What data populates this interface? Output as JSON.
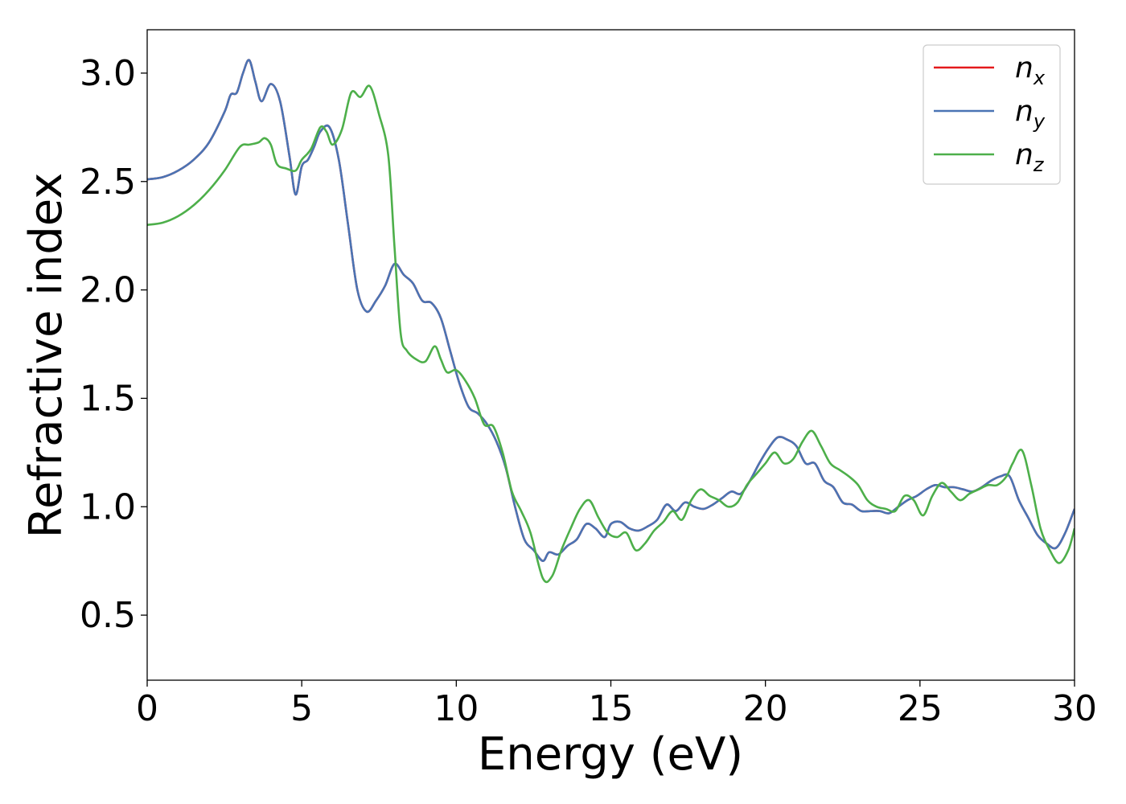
{
  "chart_data": {
    "type": "line",
    "title": "",
    "xlabel": "Energy (eV)",
    "ylabel": "Refractive index",
    "xlim": [
      0,
      30
    ],
    "ylim": [
      0.2,
      3.2
    ],
    "xticks": [
      0,
      5,
      10,
      15,
      20,
      25,
      30
    ],
    "xtick_labels": [
      "0",
      "5",
      "10",
      "15",
      "20",
      "25",
      "30"
    ],
    "yticks": [
      0.5,
      1.0,
      1.5,
      2.0,
      2.5,
      3.0
    ],
    "ytick_labels": [
      "0.5",
      "1.0",
      "1.5",
      "2.0",
      "2.5",
      "3.0"
    ],
    "grid": false,
    "legend_position": "top-right",
    "series": [
      {
        "name": "n_x",
        "base": "n",
        "sub": "x",
        "color": "#e41a1c",
        "x": [
          0,
          0.5,
          1,
          1.5,
          2,
          2.5,
          2.7,
          2.9,
          3.1,
          3.3,
          3.5,
          3.7,
          4.0,
          4.3,
          4.6,
          4.8,
          5.0,
          5.2,
          5.4,
          5.6,
          5.9,
          6.2,
          6.5,
          6.8,
          7.1,
          7.4,
          7.7,
          8.0,
          8.3,
          8.6,
          8.9,
          9.2,
          9.5,
          9.8,
          10.1,
          10.4,
          10.7,
          11.0,
          11.3,
          11.6,
          11.9,
          12.2,
          12.5,
          12.8,
          13.0,
          13.3,
          13.6,
          13.9,
          14.2,
          14.5,
          14.8,
          15.0,
          15.3,
          15.6,
          15.9,
          16.2,
          16.5,
          16.8,
          17.1,
          17.4,
          17.7,
          18.0,
          18.3,
          18.6,
          18.9,
          19.2,
          19.5,
          19.8,
          20.1,
          20.4,
          20.7,
          21.0,
          21.3,
          21.6,
          21.9,
          22.2,
          22.5,
          22.8,
          23.1,
          23.4,
          23.7,
          24.0,
          24.3,
          24.6,
          24.9,
          25.2,
          25.5,
          25.8,
          26.1,
          26.4,
          26.7,
          27.0,
          27.3,
          27.6,
          27.9,
          28.2,
          28.5,
          28.8,
          29.1,
          29.4,
          29.7,
          30.0
        ],
        "values": [
          2.51,
          2.52,
          2.55,
          2.6,
          2.68,
          2.82,
          2.9,
          2.91,
          3.0,
          3.06,
          2.96,
          2.87,
          2.95,
          2.87,
          2.62,
          2.44,
          2.57,
          2.6,
          2.66,
          2.73,
          2.75,
          2.6,
          2.3,
          2.0,
          1.9,
          1.95,
          2.02,
          2.12,
          2.07,
          2.03,
          1.95,
          1.94,
          1.87,
          1.72,
          1.57,
          1.46,
          1.43,
          1.38,
          1.3,
          1.18,
          1.0,
          0.85,
          0.8,
          0.75,
          0.79,
          0.78,
          0.82,
          0.85,
          0.92,
          0.9,
          0.86,
          0.92,
          0.93,
          0.9,
          0.89,
          0.91,
          0.94,
          1.01,
          0.98,
          1.02,
          1.0,
          0.99,
          1.01,
          1.04,
          1.07,
          1.06,
          1.12,
          1.2,
          1.27,
          1.32,
          1.31,
          1.28,
          1.2,
          1.2,
          1.12,
          1.09,
          1.02,
          1.01,
          0.98,
          0.98,
          0.98,
          0.97,
          1.0,
          1.03,
          1.05,
          1.08,
          1.1,
          1.09,
          1.09,
          1.08,
          1.07,
          1.09,
          1.12,
          1.14,
          1.14,
          1.03,
          0.95,
          0.87,
          0.83,
          0.81,
          0.88,
          0.99
        ]
      },
      {
        "name": "n_y",
        "base": "n",
        "sub": "y",
        "color": "#4a74b4",
        "x": [
          0,
          0.5,
          1,
          1.5,
          2,
          2.5,
          2.7,
          2.9,
          3.1,
          3.3,
          3.5,
          3.7,
          4.0,
          4.3,
          4.6,
          4.8,
          5.0,
          5.2,
          5.4,
          5.6,
          5.9,
          6.2,
          6.5,
          6.8,
          7.1,
          7.4,
          7.7,
          8.0,
          8.3,
          8.6,
          8.9,
          9.2,
          9.5,
          9.8,
          10.1,
          10.4,
          10.7,
          11.0,
          11.3,
          11.6,
          11.9,
          12.2,
          12.5,
          12.8,
          13.0,
          13.3,
          13.6,
          13.9,
          14.2,
          14.5,
          14.8,
          15.0,
          15.3,
          15.6,
          15.9,
          16.2,
          16.5,
          16.8,
          17.1,
          17.4,
          17.7,
          18.0,
          18.3,
          18.6,
          18.9,
          19.2,
          19.5,
          19.8,
          20.1,
          20.4,
          20.7,
          21.0,
          21.3,
          21.6,
          21.9,
          22.2,
          22.5,
          22.8,
          23.1,
          23.4,
          23.7,
          24.0,
          24.3,
          24.6,
          24.9,
          25.2,
          25.5,
          25.8,
          26.1,
          26.4,
          26.7,
          27.0,
          27.3,
          27.6,
          27.9,
          28.2,
          28.5,
          28.8,
          29.1,
          29.4,
          29.7,
          30.0
        ],
        "values": [
          2.51,
          2.52,
          2.55,
          2.6,
          2.68,
          2.82,
          2.9,
          2.91,
          3.0,
          3.06,
          2.96,
          2.87,
          2.95,
          2.87,
          2.62,
          2.44,
          2.57,
          2.6,
          2.66,
          2.73,
          2.75,
          2.6,
          2.3,
          2.0,
          1.9,
          1.95,
          2.02,
          2.12,
          2.07,
          2.03,
          1.95,
          1.94,
          1.87,
          1.72,
          1.57,
          1.46,
          1.43,
          1.38,
          1.3,
          1.18,
          1.0,
          0.85,
          0.8,
          0.75,
          0.79,
          0.78,
          0.82,
          0.85,
          0.92,
          0.9,
          0.86,
          0.92,
          0.93,
          0.9,
          0.89,
          0.91,
          0.94,
          1.01,
          0.98,
          1.02,
          1.0,
          0.99,
          1.01,
          1.04,
          1.07,
          1.06,
          1.12,
          1.2,
          1.27,
          1.32,
          1.31,
          1.28,
          1.2,
          1.2,
          1.12,
          1.09,
          1.02,
          1.01,
          0.98,
          0.98,
          0.98,
          0.97,
          1.0,
          1.03,
          1.05,
          1.08,
          1.1,
          1.09,
          1.09,
          1.08,
          1.07,
          1.09,
          1.12,
          1.14,
          1.14,
          1.03,
          0.95,
          0.87,
          0.83,
          0.81,
          0.88,
          0.99
        ]
      },
      {
        "name": "n_z",
        "base": "n",
        "sub": "z",
        "color": "#4daf4a",
        "x": [
          0,
          0.5,
          1,
          1.5,
          2,
          2.5,
          3.0,
          3.3,
          3.6,
          3.8,
          4.0,
          4.2,
          4.5,
          4.8,
          5.0,
          5.3,
          5.6,
          5.8,
          6.0,
          6.3,
          6.6,
          6.9,
          7.2,
          7.5,
          7.8,
          8.0,
          8.2,
          8.4,
          8.7,
          9.0,
          9.3,
          9.5,
          9.7,
          10.0,
          10.3,
          10.6,
          10.9,
          11.2,
          11.5,
          11.8,
          12.1,
          12.4,
          12.8,
          13.1,
          13.4,
          13.7,
          14.0,
          14.3,
          14.6,
          14.9,
          15.2,
          15.5,
          15.8,
          16.1,
          16.4,
          16.7,
          17.0,
          17.3,
          17.6,
          17.9,
          18.2,
          18.5,
          18.8,
          19.1,
          19.4,
          19.7,
          20.0,
          20.3,
          20.6,
          20.9,
          21.2,
          21.5,
          21.8,
          22.1,
          22.4,
          22.7,
          23.0,
          23.3,
          23.6,
          23.9,
          24.2,
          24.5,
          24.8,
          25.1,
          25.4,
          25.7,
          26.0,
          26.3,
          26.6,
          26.9,
          27.2,
          27.5,
          27.8,
          28.0,
          28.3,
          28.6,
          28.9,
          29.2,
          29.5,
          29.8,
          30.0
        ],
        "values": [
          2.3,
          2.31,
          2.34,
          2.39,
          2.46,
          2.55,
          2.66,
          2.67,
          2.68,
          2.7,
          2.67,
          2.58,
          2.56,
          2.55,
          2.6,
          2.65,
          2.75,
          2.73,
          2.67,
          2.74,
          2.91,
          2.89,
          2.94,
          2.81,
          2.62,
          2.2,
          1.8,
          1.72,
          1.68,
          1.67,
          1.74,
          1.68,
          1.62,
          1.63,
          1.58,
          1.5,
          1.38,
          1.37,
          1.25,
          1.07,
          0.98,
          0.88,
          0.67,
          0.68,
          0.8,
          0.9,
          0.99,
          1.03,
          0.95,
          0.88,
          0.86,
          0.88,
          0.8,
          0.83,
          0.89,
          0.93,
          0.98,
          0.94,
          1.03,
          1.08,
          1.05,
          1.03,
          1.0,
          1.02,
          1.1,
          1.15,
          1.2,
          1.25,
          1.2,
          1.22,
          1.3,
          1.35,
          1.28,
          1.2,
          1.17,
          1.14,
          1.1,
          1.03,
          1.0,
          0.99,
          0.98,
          1.05,
          1.03,
          0.96,
          1.05,
          1.11,
          1.07,
          1.03,
          1.06,
          1.08,
          1.1,
          1.1,
          1.14,
          1.2,
          1.26,
          1.1,
          0.9,
          0.8,
          0.74,
          0.8,
          0.9
        ]
      }
    ]
  }
}
